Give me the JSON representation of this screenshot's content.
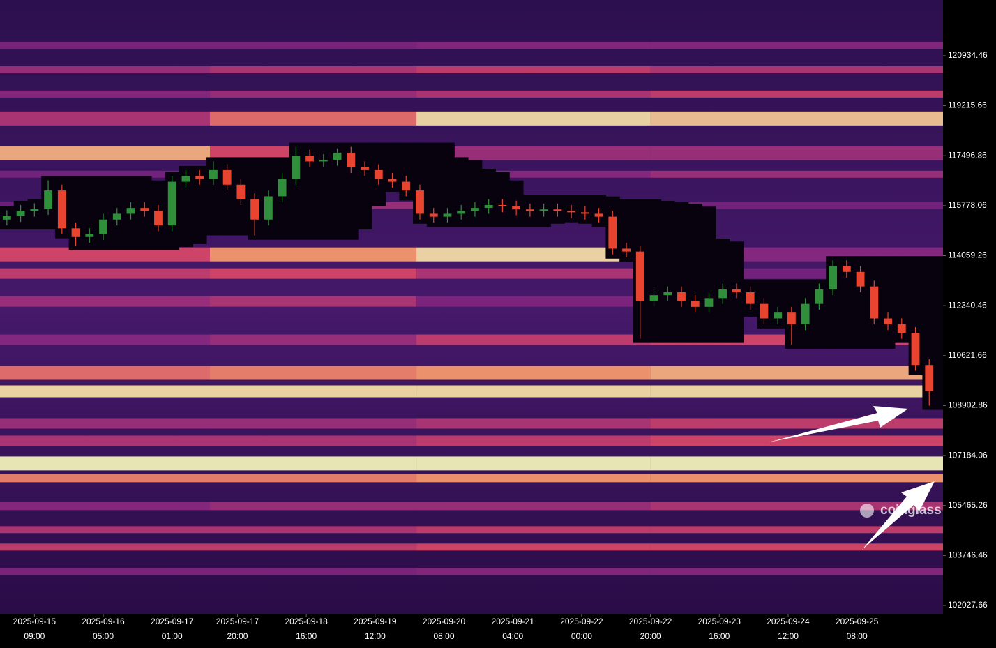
{
  "chart_data": {
    "type": "candlestick-heatmap",
    "watermark": "coinglass",
    "xlim": [
      "2025-09-14 23:00",
      "2025-09-26 09:00"
    ],
    "ylim": [
      101740,
      122852
    ],
    "yticks": [
      102027.66,
      103746.46,
      105465.26,
      107184.06,
      108902.86,
      110621.66,
      112340.46,
      114059.26,
      115778.06,
      117496.86,
      119215.66,
      120934.46
    ],
    "xticks": [
      {
        "value": "2025-09-15 09:00",
        "label": [
          "2025-09-15",
          "09:00"
        ]
      },
      {
        "value": "2025-09-16 05:00",
        "label": [
          "2025-09-16",
          "05:00"
        ]
      },
      {
        "value": "2025-09-17 01:00",
        "label": [
          "2025-09-17",
          "01:00"
        ]
      },
      {
        "value": "2025-09-17 20:00",
        "label": [
          "2025-09-17",
          "20:00"
        ]
      },
      {
        "value": "2025-09-18 16:00",
        "label": [
          "2025-09-18",
          "16:00"
        ]
      },
      {
        "value": "2025-09-19 12:00",
        "label": [
          "2025-09-19",
          "12:00"
        ]
      },
      {
        "value": "2025-09-20 08:00",
        "label": [
          "2025-09-20",
          "08:00"
        ]
      },
      {
        "value": "2025-09-21 04:00",
        "label": [
          "2025-09-21",
          "04:00"
        ]
      },
      {
        "value": "2025-09-22 00:00",
        "label": [
          "2025-09-22",
          "00:00"
        ]
      },
      {
        "value": "2025-09-22 20:00",
        "label": [
          "2025-09-22",
          "20:00"
        ]
      },
      {
        "value": "2025-09-23 16:00",
        "label": [
          "2025-09-23",
          "16:00"
        ]
      },
      {
        "value": "2025-09-24 12:00",
        "label": [
          "2025-09-24",
          "12:00"
        ]
      },
      {
        "value": "2025-09-25 08:00",
        "label": [
          "2025-09-25",
          "08:00"
        ]
      }
    ],
    "up_color": "#2f8f3a",
    "down_color": "#e8442f",
    "x": [
      "2025-09-15 01:00",
      "2025-09-15 05:00",
      "2025-09-15 09:00",
      "2025-09-15 13:00",
      "2025-09-15 17:00",
      "2025-09-15 21:00",
      "2025-09-16 01:00",
      "2025-09-16 05:00",
      "2025-09-16 09:00",
      "2025-09-16 13:00",
      "2025-09-16 17:00",
      "2025-09-16 21:00",
      "2025-09-17 01:00",
      "2025-09-17 05:00",
      "2025-09-17 09:00",
      "2025-09-17 13:00",
      "2025-09-17 17:00",
      "2025-09-17 21:00",
      "2025-09-18 01:00",
      "2025-09-18 05:00",
      "2025-09-18 09:00",
      "2025-09-18 13:00",
      "2025-09-18 17:00",
      "2025-09-18 21:00",
      "2025-09-19 01:00",
      "2025-09-19 05:00",
      "2025-09-19 09:00",
      "2025-09-19 13:00",
      "2025-09-19 17:00",
      "2025-09-19 21:00",
      "2025-09-20 01:00",
      "2025-09-20 05:00",
      "2025-09-20 09:00",
      "2025-09-20 13:00",
      "2025-09-20 17:00",
      "2025-09-20 21:00",
      "2025-09-21 01:00",
      "2025-09-21 05:00",
      "2025-09-21 09:00",
      "2025-09-21 13:00",
      "2025-09-21 17:00",
      "2025-09-21 21:00",
      "2025-09-22 01:00",
      "2025-09-22 05:00",
      "2025-09-22 09:00",
      "2025-09-22 13:00",
      "2025-09-22 17:00",
      "2025-09-22 21:00",
      "2025-09-23 01:00",
      "2025-09-23 05:00",
      "2025-09-23 09:00",
      "2025-09-23 13:00",
      "2025-09-23 17:00",
      "2025-09-23 21:00",
      "2025-09-24 01:00",
      "2025-09-24 05:00",
      "2025-09-24 09:00",
      "2025-09-24 13:00",
      "2025-09-24 17:00",
      "2025-09-24 21:00",
      "2025-09-25 01:00",
      "2025-09-25 05:00",
      "2025-09-25 09:00",
      "2025-09-25 13:00",
      "2025-09-25 17:00",
      "2025-09-25 21:00",
      "2025-09-26 01:00",
      "2025-09-26 05:00"
    ],
    "open": [
      115300,
      115420,
      115600,
      115660,
      116300,
      115000,
      114700,
      114800,
      115300,
      115500,
      115700,
      115600,
      115100,
      116600,
      116800,
      116700,
      117000,
      116500,
      116000,
      115300,
      116100,
      116700,
      117500,
      117300,
      117350,
      117600,
      117100,
      117000,
      116700,
      116600,
      116300,
      115500,
      115400,
      115500,
      115600,
      115700,
      115800,
      115750,
      115650,
      115600,
      115650,
      115600,
      115550,
      115500,
      115400,
      114300,
      114200,
      112500,
      112700,
      112800,
      112500,
      112300,
      112600,
      112900,
      112800,
      112400,
      111900,
      112100,
      111700,
      112400,
      112900,
      113700,
      113500,
      113000,
      111900,
      111700,
      111400,
      110300
    ],
    "high": [
      115620,
      115800,
      115860,
      116650,
      116500,
      115200,
      115000,
      115500,
      115700,
      115900,
      115900,
      115800,
      116800,
      117000,
      117000,
      117300,
      117200,
      116700,
      116200,
      116300,
      116900,
      117800,
      117700,
      117550,
      117750,
      117800,
      117300,
      117200,
      116900,
      116800,
      116500,
      115700,
      115700,
      115800,
      115900,
      116000,
      116000,
      115950,
      115850,
      115850,
      115850,
      115800,
      115750,
      115700,
      115600,
      114500,
      114400,
      112900,
      113000,
      113000,
      112700,
      112800,
      113100,
      113100,
      113000,
      112600,
      112300,
      112300,
      112600,
      113100,
      113900,
      113900,
      113700,
      113200,
      112100,
      111900,
      111600,
      110500
    ],
    "low": [
      115100,
      115220,
      115400,
      115460,
      114800,
      114400,
      114500,
      114600,
      115100,
      115300,
      115400,
      114900,
      114900,
      116400,
      116500,
      116500,
      116300,
      115800,
      114750,
      115100,
      115900,
      116500,
      117100,
      117100,
      117150,
      116900,
      116800,
      116500,
      116400,
      116100,
      115300,
      115200,
      115200,
      115300,
      115400,
      115500,
      115550,
      115450,
      115400,
      115400,
      115400,
      115350,
      115300,
      115200,
      114100,
      114000,
      111200,
      112300,
      112500,
      112300,
      112100,
      112100,
      112400,
      112600,
      112200,
      111700,
      111700,
      111000,
      111500,
      112200,
      112700,
      113300,
      112800,
      111700,
      111500,
      111200,
      110100,
      108900
    ],
    "close": [
      115420,
      115600,
      115660,
      116300,
      115000,
      114700,
      114800,
      115300,
      115500,
      115700,
      115600,
      115100,
      116600,
      116800,
      116700,
      117000,
      116500,
      116000,
      115300,
      116100,
      116700,
      117500,
      117300,
      117350,
      117600,
      117100,
      117000,
      116700,
      116600,
      116300,
      115500,
      115400,
      115500,
      115600,
      115700,
      115800,
      115750,
      115650,
      115600,
      115650,
      115600,
      115550,
      115500,
      115400,
      114300,
      114200,
      112500,
      112700,
      112800,
      112500,
      112300,
      112600,
      112900,
      112800,
      112400,
      111900,
      112100,
      111700,
      112400,
      112900,
      113700,
      113500,
      113000,
      111900,
      111700,
      111400,
      110300,
      109400
    ],
    "heatmap": {
      "segments": [
        "2025-09-17 12:00",
        "2025-09-20 00:00",
        "2025-09-22 20:00"
      ],
      "bands": [
        {
          "low": 121174,
          "high": 121414,
          "intensity": [
            0.35,
            0.35,
            0.4,
            0.4
          ]
        },
        {
          "low": 120335,
          "high": 120575,
          "intensity": [
            0.45,
            0.5,
            0.55,
            0.5
          ]
        },
        {
          "low": 119496,
          "high": 119736,
          "intensity": [
            0.4,
            0.45,
            0.5,
            0.55
          ]
        },
        {
          "low": 118537,
          "high": 119017,
          "intensity": [
            0.5,
            0.7,
            0.95,
            0.9
          ]
        },
        {
          "low": 117339,
          "high": 117818,
          "intensity": [
            0.85,
            0.6,
            0.45,
            0.45
          ]
        },
        {
          "low": 116740,
          "high": 116979,
          "intensity": [
            0.3,
            0.35,
            0.4,
            0.45
          ]
        },
        {
          "low": 115661,
          "high": 115901,
          "intensity": [
            0.25,
            0.45,
            0.3,
            0.3
          ]
        },
        {
          "low": 113863,
          "high": 114343,
          "intensity": [
            0.6,
            0.8,
            0.95,
            0.4
          ]
        },
        {
          "low": 113264,
          "high": 113624,
          "intensity": [
            0.55,
            0.6,
            0.5,
            0.3
          ]
        },
        {
          "low": 112305,
          "high": 112665,
          "intensity": [
            0.45,
            0.5,
            0.35,
            0.35
          ]
        },
        {
          "low": 110987,
          "high": 111347,
          "intensity": [
            0.4,
            0.45,
            0.55,
            0.6
          ]
        },
        {
          "low": 109789,
          "high": 110268,
          "intensity": [
            0.7,
            0.75,
            0.8,
            0.85
          ]
        },
        {
          "low": 109189,
          "high": 109597,
          "intensity": [
            0.95,
            0.95,
            0.95,
            0.95
          ]
        },
        {
          "low": 108110,
          "high": 108470,
          "intensity": [
            0.45,
            0.45,
            0.5,
            0.55
          ]
        },
        {
          "low": 107511,
          "high": 107871,
          "intensity": [
            0.5,
            0.5,
            0.55,
            0.6
          ]
        },
        {
          "low": 106673,
          "high": 107152,
          "intensity": [
            1,
            1,
            1,
            1
          ]
        },
        {
          "low": 106265,
          "high": 106552,
          "intensity": [
            0.75,
            0.75,
            0.8,
            0.8
          ]
        },
        {
          "low": 105306,
          "high": 105594,
          "intensity": [
            0.4,
            0.45,
            0.45,
            0.5
          ]
        },
        {
          "low": 104515,
          "high": 104755,
          "intensity": [
            0.5,
            0.5,
            0.55,
            0.55
          ]
        },
        {
          "low": 103915,
          "high": 104155,
          "intensity": [
            0.55,
            0.55,
            0.6,
            0.6
          ]
        },
        {
          "low": 103077,
          "high": 103317,
          "intensity": [
            0.35,
            0.35,
            0.4,
            0.4
          ]
        }
      ]
    }
  }
}
